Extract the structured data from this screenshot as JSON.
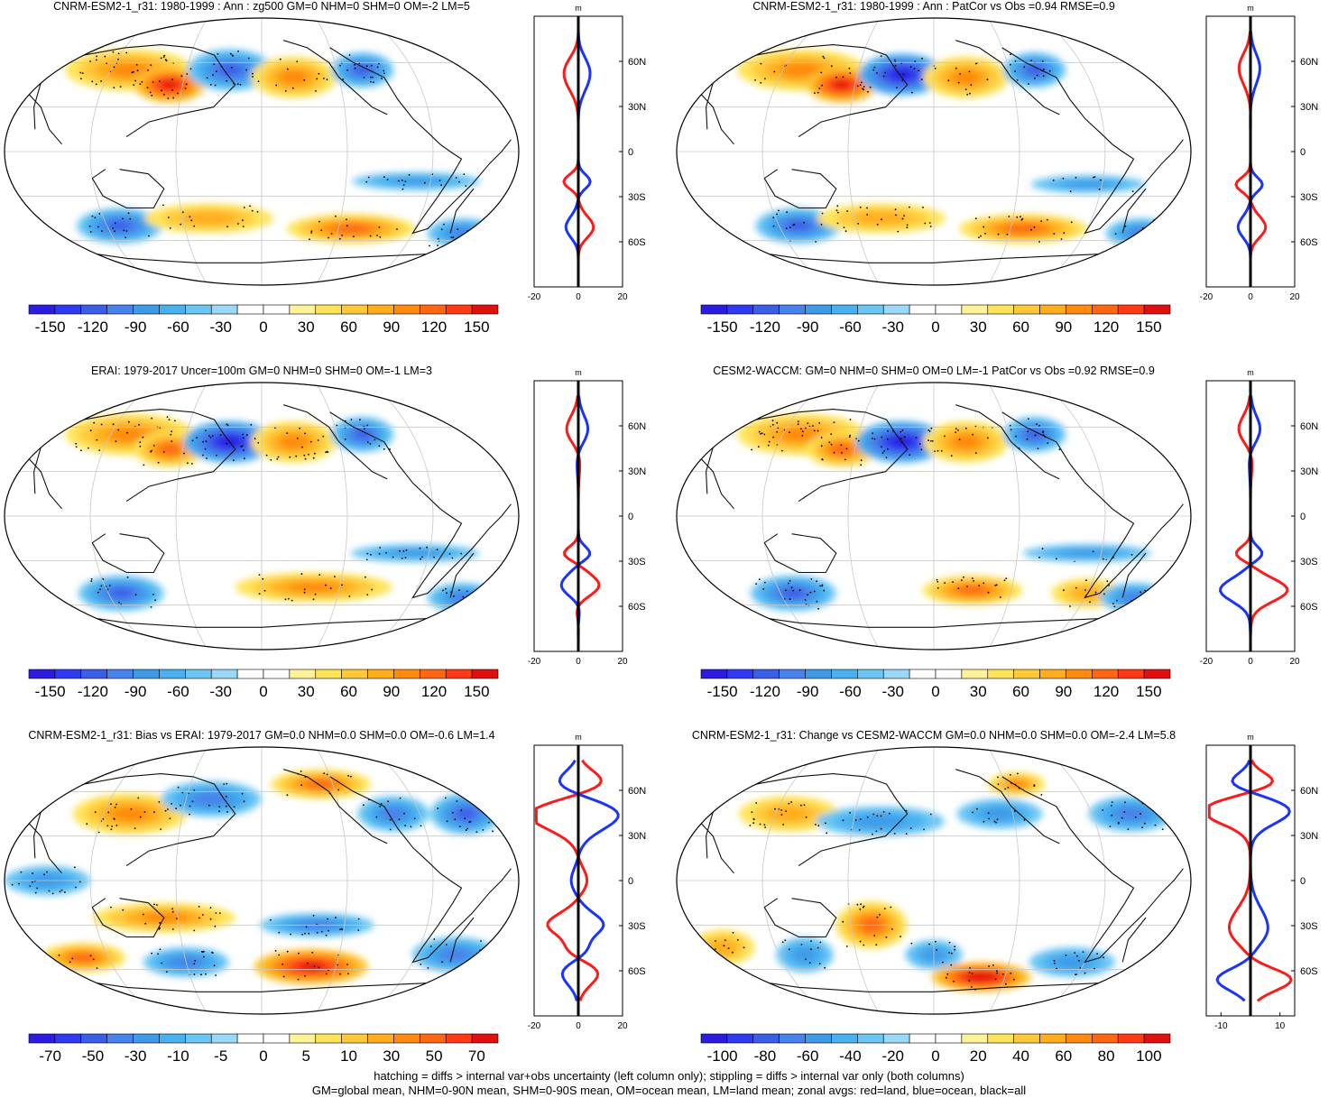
{
  "colors": {
    "land_profile": "#ff1a1a",
    "ocean_profile": "#1a33ff",
    "all_profile": "#000000",
    "coastline": "#111111",
    "graticule": "#c8c8c8",
    "stipple": "#000000"
  },
  "colormap": [
    "#2b1ce0",
    "#2f3bf0",
    "#3b5ee8",
    "#4a82ec",
    "#3f9be8",
    "#49b1f0",
    "#6cc6f4",
    "#9ad8f6",
    "#ffffff",
    "#ffffff",
    "#fff39a",
    "#ffe45a",
    "#ffc93a",
    "#ffad1c",
    "#ff8a10",
    "#ff6612",
    "#ff3a14",
    "#e01010"
  ],
  "panels": [
    {
      "id": "cnrm-model",
      "title": "CNRM-ESM2-1_r31: 1980-1999 : Ann : zg500 GM=0 NHM=0 SHM=0 OM=-2 LM=5",
      "colorbar_labels": [
        "-150",
        "-120",
        "-90",
        "-60",
        "-30",
        "0",
        "30",
        "60",
        "90",
        "120",
        "150"
      ],
      "zonal": {
        "xrange": [
          -20,
          20
        ],
        "xticks": [
          "-20",
          "0",
          "20"
        ],
        "unit": "m",
        "lat_labels": [
          "60N",
          "30N",
          "0",
          "30S",
          "60S"
        ]
      },
      "blobs": [
        {
          "lon": -105,
          "lat": 55,
          "rx": 45,
          "ry": 14,
          "v": 4
        },
        {
          "lon": -70,
          "lat": 45,
          "rx": 25,
          "ry": 12,
          "v": 6
        },
        {
          "lon": -25,
          "lat": 55,
          "rx": 30,
          "ry": 14,
          "v": -5
        },
        {
          "lon": 25,
          "lat": 50,
          "rx": 30,
          "ry": 14,
          "v": 4
        },
        {
          "lon": 80,
          "lat": 55,
          "rx": 22,
          "ry": 12,
          "v": -5
        },
        {
          "lon": 110,
          "lat": -20,
          "rx": 45,
          "ry": 6,
          "v": -3
        },
        {
          "lon": -110,
          "lat": -50,
          "rx": 30,
          "ry": 12,
          "v": -5
        },
        {
          "lon": -40,
          "lat": -45,
          "rx": 45,
          "ry": 10,
          "v": 3
        },
        {
          "lon": 70,
          "lat": -52,
          "rx": 45,
          "ry": 10,
          "v": 5
        },
        {
          "lon": 160,
          "lat": -55,
          "rx": 25,
          "ry": 10,
          "v": -4
        }
      ]
    },
    {
      "id": "cnrm-patcor",
      "title": "CNRM-ESM2-1_r31: 1980-1999 : Ann : PatCor vs Obs =0.94 RMSE=0.9",
      "colorbar_labels": [
        "-150",
        "-120",
        "-90",
        "-60",
        "-30",
        "0",
        "30",
        "60",
        "90",
        "120",
        "150"
      ],
      "zonal": {
        "xrange": [
          -20,
          20
        ],
        "xticks": [
          "-20",
          "0",
          "20"
        ],
        "unit": "m",
        "lat_labels": [
          "60N",
          "30N",
          "0",
          "30S",
          "60S"
        ]
      },
      "blobs": [
        {
          "lon": -105,
          "lat": 55,
          "rx": 45,
          "ry": 14,
          "v": 4
        },
        {
          "lon": -70,
          "lat": 45,
          "rx": 25,
          "ry": 12,
          "v": 6
        },
        {
          "lon": -25,
          "lat": 52,
          "rx": 30,
          "ry": 14,
          "v": -6
        },
        {
          "lon": 25,
          "lat": 50,
          "rx": 30,
          "ry": 14,
          "v": 4
        },
        {
          "lon": 80,
          "lat": 55,
          "rx": 22,
          "ry": 12,
          "v": -5
        },
        {
          "lon": 110,
          "lat": -22,
          "rx": 40,
          "ry": 6,
          "v": -3
        },
        {
          "lon": -105,
          "lat": -50,
          "rx": 30,
          "ry": 12,
          "v": -5
        },
        {
          "lon": -40,
          "lat": -45,
          "rx": 45,
          "ry": 10,
          "v": 3
        },
        {
          "lon": 70,
          "lat": -52,
          "rx": 45,
          "ry": 10,
          "v": 5
        },
        {
          "lon": 165,
          "lat": -55,
          "rx": 25,
          "ry": 10,
          "v": -4
        }
      ]
    },
    {
      "id": "erai-obs",
      "title": "ERAI: 1979-2017 Uncer=100m GM=0 NHM=0 SHM=0 OM=-1 LM=3",
      "colorbar_labels": [
        "-150",
        "-120",
        "-90",
        "-60",
        "-30",
        "0",
        "30",
        "60",
        "90",
        "120",
        "150"
      ],
      "zonal": {
        "xrange": [
          -20,
          20
        ],
        "xticks": [
          "-20",
          "0",
          "20"
        ],
        "unit": "m",
        "lat_labels": [
          "60N",
          "30N",
          "0",
          "30S",
          "60S"
        ]
      },
      "blobs": [
        {
          "lon": -105,
          "lat": 55,
          "rx": 45,
          "ry": 14,
          "v": 4
        },
        {
          "lon": -70,
          "lat": 45,
          "rx": 25,
          "ry": 12,
          "v": 5
        },
        {
          "lon": -25,
          "lat": 50,
          "rx": 32,
          "ry": 14,
          "v": -6
        },
        {
          "lon": 25,
          "lat": 50,
          "rx": 30,
          "ry": 14,
          "v": 4
        },
        {
          "lon": 80,
          "lat": 55,
          "rx": 22,
          "ry": 12,
          "v": -5
        },
        {
          "lon": 110,
          "lat": -25,
          "rx": 45,
          "ry": 6,
          "v": -3
        },
        {
          "lon": -110,
          "lat": -52,
          "rx": 30,
          "ry": 12,
          "v": -5
        },
        {
          "lon": 40,
          "lat": -48,
          "rx": 55,
          "ry": 10,
          "v": 4
        },
        {
          "lon": 160,
          "lat": -55,
          "rx": 25,
          "ry": 10,
          "v": -4
        }
      ]
    },
    {
      "id": "cesm2-waccm",
      "title": "CESM2-WACCM: GM=0 NHM=0 SHM=0 OM=0 LM=-1 PatCor vs Obs =0.92 RMSE=0.9",
      "colorbar_labels": [
        "-150",
        "-120",
        "-90",
        "-60",
        "-30",
        "0",
        "30",
        "60",
        "90",
        "120",
        "150"
      ],
      "zonal": {
        "xrange": [
          -20,
          20
        ],
        "xticks": [
          "-20",
          "0",
          "20"
        ],
        "unit": "m",
        "lat_labels": [
          "60N",
          "30N",
          "0",
          "30S",
          "60S"
        ]
      },
      "blobs": [
        {
          "lon": -105,
          "lat": 55,
          "rx": 45,
          "ry": 14,
          "v": 4
        },
        {
          "lon": -70,
          "lat": 45,
          "rx": 25,
          "ry": 12,
          "v": 5
        },
        {
          "lon": -25,
          "lat": 50,
          "rx": 32,
          "ry": 14,
          "v": -6
        },
        {
          "lon": 25,
          "lat": 50,
          "rx": 30,
          "ry": 14,
          "v": 4
        },
        {
          "lon": 80,
          "lat": 55,
          "rx": 22,
          "ry": 12,
          "v": -5
        },
        {
          "lon": 110,
          "lat": -25,
          "rx": 45,
          "ry": 6,
          "v": -3
        },
        {
          "lon": -110,
          "lat": -52,
          "rx": 30,
          "ry": 12,
          "v": -5
        },
        {
          "lon": 30,
          "lat": -50,
          "rx": 35,
          "ry": 10,
          "v": 5
        },
        {
          "lon": 120,
          "lat": -52,
          "rx": 25,
          "ry": 10,
          "v": 3
        },
        {
          "lon": 160,
          "lat": -55,
          "rx": 25,
          "ry": 10,
          "v": -4
        }
      ]
    },
    {
      "id": "cnrm-bias",
      "title": "CNRM-ESM2-1_r31: Bias vs ERAI: 1979-2017 GM=0.0 NHM=0.0 SHM=0.0 OM=-0.6 LM=1.4",
      "colorbar_labels": [
        "-70",
        "-50",
        "-30",
        "-10",
        "-5",
        "0",
        "5",
        "10",
        "30",
        "50",
        "70"
      ],
      "zonal": {
        "xrange": [
          -20,
          20
        ],
        "xticks": [
          "-20",
          "0",
          "20"
        ],
        "unit": "m",
        "lat_labels": [
          "60N",
          "30N",
          "0",
          "30S",
          "60S"
        ]
      },
      "blobs": [
        {
          "lon": -100,
          "lat": 45,
          "rx": 40,
          "ry": 14,
          "v": 4
        },
        {
          "lon": -40,
          "lat": 55,
          "rx": 35,
          "ry": 12,
          "v": -4
        },
        {
          "lon": 50,
          "lat": 65,
          "rx": 35,
          "ry": 10,
          "v": 5
        },
        {
          "lon": 100,
          "lat": 45,
          "rx": 25,
          "ry": 12,
          "v": -4
        },
        {
          "lon": 155,
          "lat": 45,
          "rx": 25,
          "ry": 14,
          "v": -5
        },
        {
          "lon": -150,
          "lat": 0,
          "rx": 30,
          "ry": 10,
          "v": -3
        },
        {
          "lon": -70,
          "lat": -25,
          "rx": 50,
          "ry": 10,
          "v": 4
        },
        {
          "lon": 40,
          "lat": -30,
          "rx": 40,
          "ry": 8,
          "v": -4
        },
        {
          "lon": -140,
          "lat": -52,
          "rx": 30,
          "ry": 10,
          "v": 5
        },
        {
          "lon": -60,
          "lat": -55,
          "rx": 30,
          "ry": 10,
          "v": -4
        },
        {
          "lon": 40,
          "lat": -58,
          "rx": 40,
          "ry": 12,
          "v": 6
        },
        {
          "lon": 150,
          "lat": -50,
          "rx": 30,
          "ry": 12,
          "v": -4
        }
      ]
    },
    {
      "id": "cnrm-change",
      "title": "CNRM-ESM2-1_r31: Change vs CESM2-WACCM GM=0.0 NHM=0.0 SHM=0.0 OM=-2.4 LM=5.8",
      "colorbar_labels": [
        "-100",
        "-80",
        "-60",
        "-40",
        "-20",
        "0",
        "20",
        "40",
        "60",
        "80",
        "100"
      ],
      "zonal": {
        "xrange": [
          -15,
          15
        ],
        "xticks": [
          "-10",
          "10"
        ],
        "unit": "m",
        "lat_labels": [
          "60N",
          "30N",
          "0",
          "30S",
          "60S"
        ]
      },
      "blobs": [
        {
          "lon": -110,
          "lat": 45,
          "rx": 35,
          "ry": 12,
          "v": 3
        },
        {
          "lon": -40,
          "lat": 40,
          "rx": 45,
          "ry": 10,
          "v": -3
        },
        {
          "lon": 50,
          "lat": 45,
          "rx": 30,
          "ry": 10,
          "v": -3
        },
        {
          "lon": 70,
          "lat": 65,
          "rx": 20,
          "ry": 8,
          "v": 4
        },
        {
          "lon": 150,
          "lat": 45,
          "rx": 30,
          "ry": 12,
          "v": -4
        },
        {
          "lon": -160,
          "lat": -45,
          "rx": 22,
          "ry": 12,
          "v": 3
        },
        {
          "lon": -100,
          "lat": -50,
          "rx": 20,
          "ry": 12,
          "v": -3
        },
        {
          "lon": -45,
          "lat": -30,
          "rx": 25,
          "ry": 16,
          "v": 5
        },
        {
          "lon": 0,
          "lat": -50,
          "rx": 20,
          "ry": 10,
          "v": -3
        },
        {
          "lon": 40,
          "lat": -65,
          "rx": 35,
          "ry": 10,
          "v": 7
        },
        {
          "lon": 110,
          "lat": -55,
          "rx": 30,
          "ry": 10,
          "v": -3
        }
      ]
    }
  ],
  "footer": {
    "line1": "hatching = diffs > internal var+obs uncertainty (left column only); stippling = diffs > internal var only (both columns)",
    "line2": "GM=global mean, NHM=0-90N mean, SHM=0-90S mean, OM=ocean mean, LM=land mean; zonal avgs: red=land, blue=ocean, black=all"
  }
}
